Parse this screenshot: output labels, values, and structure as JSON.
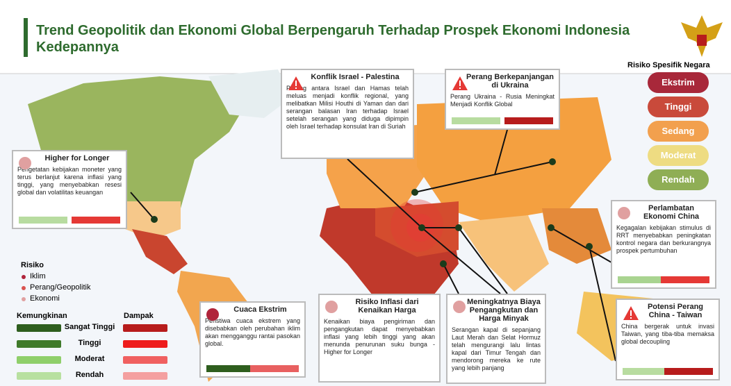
{
  "header": {
    "title": "Trend Geopolitik dan Ekonomi Global Berpengaruh Terhadap Prospek Ekonomi Indonesia Kedepannya"
  },
  "risk_levels": {
    "title": "Risiko Spesifik Negara",
    "items": [
      "Ekstrim",
      "Tinggi",
      "Sedang",
      "Moderat",
      "Rendah"
    ]
  },
  "boxes": [
    {
      "title": "Higher for Longer",
      "body": "Pengetatan kebijakan moneter yang terus berlanjut karena inflasi yang tinggi, yang menyebabkan resesi global dan volatilitas keuangan"
    },
    {
      "title": "Konflik Israel - Palestina",
      "body": "Perang antara Israel dan Hamas telah meluas menjadi konflik regional, yang melibatkan Milisi Houthi di Yaman dan dari serangan balasan Iran terhadap Israel setelah serangan yang diduga dipimpin oleh Israel terhadap konsulat Iran di Suriah"
    },
    {
      "title": "Perang Berkepanjangan di Ukraina",
      "body": "Perang Ukraina - Rusia Meningkat Menjadi Konflik Global"
    },
    {
      "title": "Perlambatan Ekonomi China",
      "body": "Kegagalan kebijakan stimulus di RRT menyebabkan peningkatan kontrol negara dan berkurangnya prospek pertumbuhan"
    },
    {
      "title": "Cuaca Ekstrim",
      "body": "Peristiwa cuaca ekstrem yang disebabkan oleh perubahan iklim akan mengganggu rantai pasokan global."
    },
    {
      "title": "Risiko Inflasi dari Kenaikan Harga",
      "body": "Kenaikan biaya pengiriman dan pengangkutan dapat menyebabkan inflasi yang lebih tinggi yang akan menunda penurunan suku bunga - Higher for Longer"
    },
    {
      "title": "Meningkatnya Biaya Pengangkutan dan Harga Minyak",
      "body": "Serangan kapal di sepanjang Laut Merah dan Selat Hormuz telah mengurangi lalu lintas kapal dari Timur Tengah dan mendorong mereka ke rute yang lebih panjang"
    },
    {
      "title": "Potensi Perang China - Taiwan",
      "body": "China bergerak untuk invasi Taiwan, yang tiba-tiba memaksa global decoupling"
    }
  ],
  "legend": {
    "risk": {
      "title": "Risiko",
      "items": [
        "Iklim",
        "Perang/Geopolitik",
        "Ekonomi"
      ]
    },
    "likelihood": {
      "title": "Kemungkinan"
    },
    "impact": {
      "title": "Dampak"
    },
    "levels": [
      "Sangat Tinggi",
      "Tinggi",
      "Moderat",
      "Rendah"
    ]
  }
}
